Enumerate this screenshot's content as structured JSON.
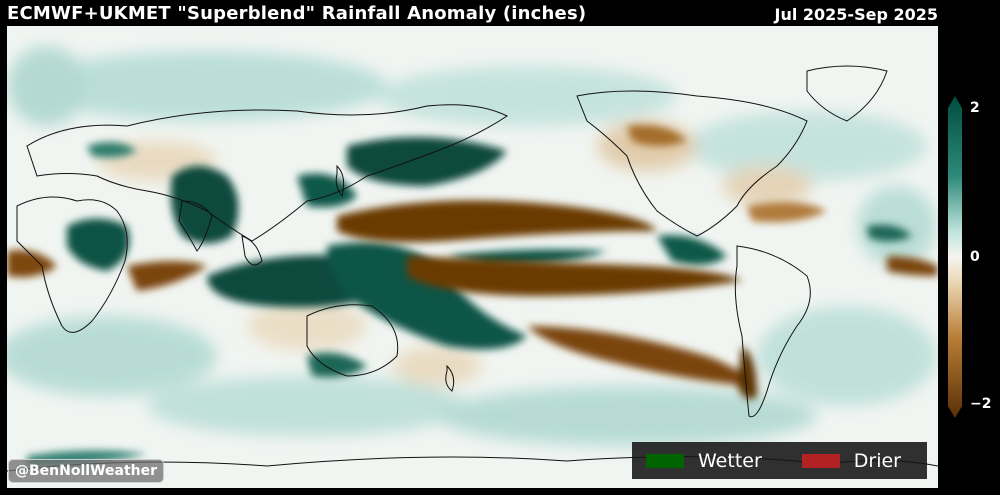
{
  "header": {
    "title": "ECMWF+UKMET \"Superblend\" Rainfall Anomaly (inches)",
    "period": "Jul 2025-Sep 2025"
  },
  "colorbar": {
    "max_label": "2",
    "mid_label": "0",
    "min_label": "−2",
    "colors": {
      "wet": "#004d40",
      "neutral": "#f5f5f0",
      "dry": "#5a3005"
    }
  },
  "legend": {
    "items": [
      {
        "label": "Wetter",
        "color": "#006400"
      },
      {
        "label": "Drier",
        "color": "#b22222"
      }
    ]
  },
  "watermark": {
    "text": "@BenNollWeather"
  }
}
